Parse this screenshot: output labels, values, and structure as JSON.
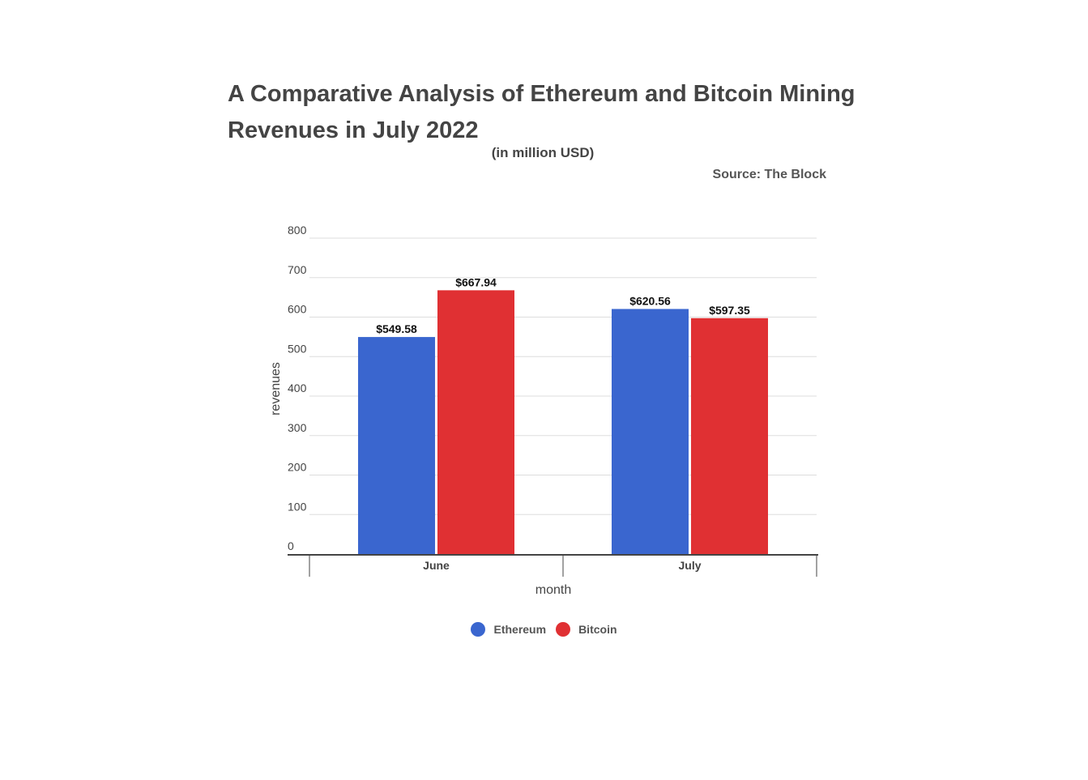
{
  "chart_data": {
    "type": "bar",
    "title": "A Comparative Analysis of Ethereum and Bitcoin Mining Revenues in July 2022",
    "subtitle": "(in million USD)",
    "source": "Source: The Block",
    "xlabel": "month",
    "ylabel": "revenues",
    "categories": [
      "June",
      "July"
    ],
    "series": [
      {
        "name": "Ethereum",
        "color": "#3a66cf",
        "values": [
          549.58,
          620.56
        ],
        "labels": [
          "$549.58",
          "$620.56"
        ]
      },
      {
        "name": "Bitcoin",
        "color": "#e03033",
        "values": [
          667.94,
          597.35
        ],
        "labels": [
          "$667.94",
          "$597.35"
        ]
      }
    ],
    "ylim": [
      0,
      800
    ],
    "yticks": [
      "0",
      "100",
      "200",
      "300",
      "400",
      "500",
      "600",
      "700",
      "800"
    ],
    "grid": true,
    "legend_position": "bottom"
  }
}
